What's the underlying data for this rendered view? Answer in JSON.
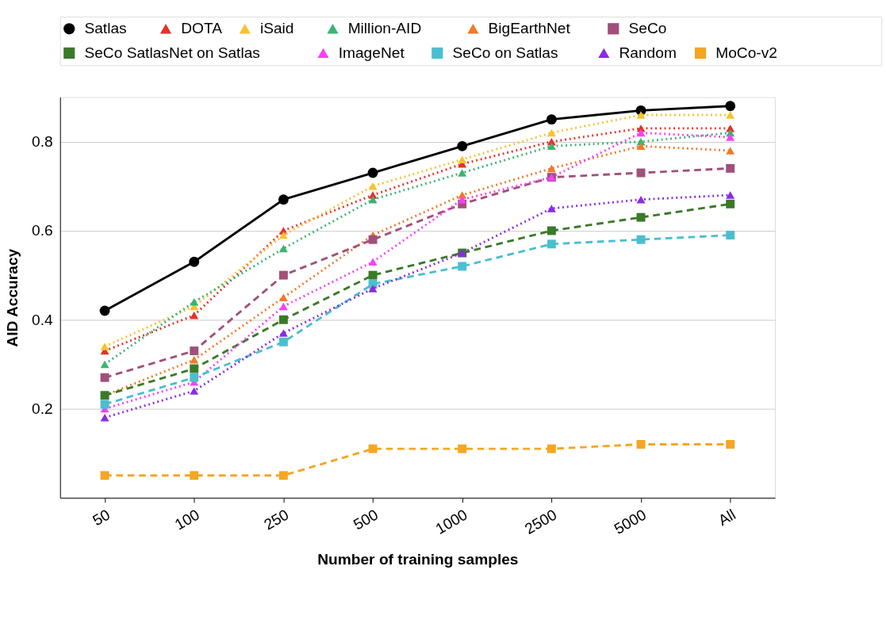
{
  "chart_data": {
    "type": "line",
    "xlabel": "Number of training samples",
    "ylabel": "AID Accuracy",
    "categories": [
      "50",
      "100",
      "250",
      "500",
      "1000",
      "2500",
      "5000",
      "All"
    ],
    "ylim": [
      0,
      0.9
    ],
    "yticks": [
      0.2,
      0.4,
      0.6,
      0.8
    ],
    "grid": "y",
    "legend": "top",
    "series": [
      {
        "name": "Satlas",
        "color": "#000000",
        "marker": "circle",
        "line_style": "solid",
        "values": [
          0.42,
          0.53,
          0.67,
          0.73,
          0.79,
          0.85,
          0.87,
          0.88
        ]
      },
      {
        "name": "DOTA",
        "color": "#e8302a",
        "marker": "triangle",
        "line_style": "dotted",
        "values": [
          0.33,
          0.41,
          0.6,
          0.68,
          0.75,
          0.8,
          0.83,
          0.83
        ]
      },
      {
        "name": "iSaid",
        "color": "#f9c22e",
        "marker": "triangle",
        "line_style": "dotted",
        "values": [
          0.34,
          0.43,
          0.59,
          0.7,
          0.76,
          0.82,
          0.86,
          0.86
        ]
      },
      {
        "name": "Million-AID",
        "color": "#3cb371",
        "marker": "triangle",
        "line_style": "dotted",
        "values": [
          0.3,
          0.44,
          0.56,
          0.67,
          0.73,
          0.79,
          0.8,
          0.82
        ]
      },
      {
        "name": "BigEarthNet",
        "color": "#f07a28",
        "marker": "triangle",
        "line_style": "dotted",
        "values": [
          0.23,
          0.31,
          0.45,
          0.59,
          0.68,
          0.74,
          0.79,
          0.78
        ]
      },
      {
        "name": "SeCo",
        "color": "#a0507a",
        "marker": "square",
        "line_style": "dashed",
        "values": [
          0.27,
          0.33,
          0.5,
          0.58,
          0.66,
          0.72,
          0.73,
          0.74
        ]
      },
      {
        "name": "SeCo SatlasNet on Satlas",
        "color": "#3a7a28",
        "marker": "square",
        "line_style": "dashed",
        "values": [
          0.23,
          0.29,
          0.4,
          0.5,
          0.55,
          0.6,
          0.63,
          0.66
        ]
      },
      {
        "name": "ImageNet",
        "color": "#f542f5",
        "marker": "triangle",
        "line_style": "dotted",
        "values": [
          0.2,
          0.26,
          0.43,
          0.53,
          0.67,
          0.72,
          0.82,
          0.81
        ]
      },
      {
        "name": "SeCo on Satlas",
        "color": "#4bbfcf",
        "marker": "square",
        "line_style": "dashed",
        "values": [
          0.21,
          0.27,
          0.35,
          0.48,
          0.52,
          0.57,
          0.58,
          0.59
        ]
      },
      {
        "name": "Random",
        "color": "#8a2be2",
        "marker": "triangle",
        "line_style": "dotted",
        "values": [
          0.18,
          0.24,
          0.37,
          0.47,
          0.55,
          0.65,
          0.67,
          0.68
        ]
      },
      {
        "name": "MoCo-v2",
        "color": "#f5a623",
        "marker": "square",
        "line_style": "dashed",
        "values": [
          0.05,
          0.05,
          0.05,
          0.11,
          0.11,
          0.11,
          0.12,
          0.12
        ]
      }
    ]
  }
}
